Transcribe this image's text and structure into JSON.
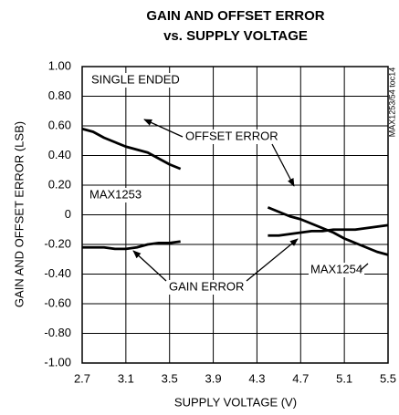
{
  "chart_data": {
    "type": "line",
    "title": [
      "GAIN AND OFFSET ERROR",
      "vs. SUPPLY VOLTAGE"
    ],
    "xlabel": "SUPPLY VOLTAGE (V)",
    "ylabel": "GAIN AND OFFSET ERROR (LSB)",
    "xlim": [
      2.7,
      5.5
    ],
    "xticks": [
      2.7,
      3.1,
      3.5,
      3.9,
      4.3,
      4.7,
      5.1,
      5.5
    ],
    "ylim": [
      -1,
      1
    ],
    "yticks": [
      {
        "value": 1,
        "label": "1.00"
      },
      {
        "value": 0.8,
        "label": "0.80"
      },
      {
        "value": 0.6,
        "label": "0.60"
      },
      {
        "value": 0.4,
        "label": "0.40"
      },
      {
        "value": 0.2,
        "label": "0.20"
      },
      0,
      {
        "value": -0.2,
        "label": "-0.20"
      },
      {
        "value": -0.4,
        "label": "-0.40"
      },
      {
        "value": -0.6,
        "label": "-0.60"
      },
      {
        "value": -0.8,
        "label": "-0.80"
      },
      {
        "value": -1,
        "label": "-1.00"
      }
    ],
    "grid": true,
    "series": [
      {
        "color": "#000000",
        "x": [
          2.7,
          2.8,
          2.9,
          3.0,
          3.1,
          3.2,
          3.3,
          3.4,
          3.5,
          3.6
        ],
        "values": [
          0.58,
          0.56,
          0.52,
          0.49,
          0.46,
          0.44,
          0.42,
          0.38,
          0.34,
          0.31
        ]
      },
      {
        "color": "#000000",
        "x": [
          2.7,
          2.8,
          2.9,
          3.0,
          3.1,
          3.2,
          3.3,
          3.4,
          3.5,
          3.6
        ],
        "values": [
          -0.22,
          -0.22,
          -0.22,
          -0.23,
          -0.23,
          -0.22,
          -0.2,
          -0.19,
          -0.19,
          -0.18
        ]
      },
      {
        "color": "#000000",
        "x": [
          4.4,
          4.5,
          4.6,
          4.7,
          4.8,
          4.9,
          5.0,
          5.1,
          5.2,
          5.3,
          5.4,
          5.5
        ],
        "values": [
          0.05,
          0.02,
          -0.01,
          -0.03,
          -0.06,
          -0.09,
          -0.12,
          -0.16,
          -0.19,
          -0.22,
          -0.25,
          -0.27
        ]
      },
      {
        "color": "#000000",
        "x": [
          4.4,
          4.5,
          4.6,
          4.7,
          4.8,
          4.9,
          5.0,
          5.1,
          5.2,
          5.3,
          5.4,
          5.5
        ],
        "values": [
          -0.14,
          -0.14,
          -0.13,
          -0.12,
          -0.11,
          -0.11,
          -0.1,
          -0.1,
          -0.1,
          -0.09,
          -0.08,
          -0.07
        ]
      }
    ],
    "annotations": [
      "SINGLE ENDED",
      "OFFSET ERROR",
      "GAIN ERROR",
      "MAX1253",
      "MAX1254",
      "MAX1253/54 toc14"
    ]
  }
}
